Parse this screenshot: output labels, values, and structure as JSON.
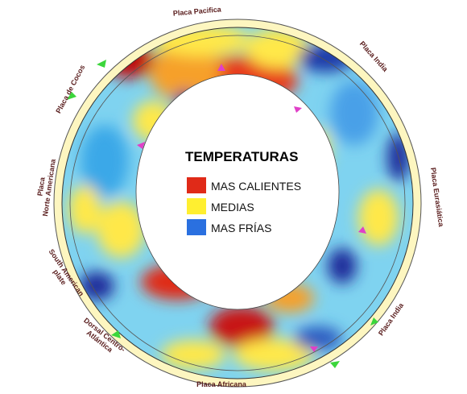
{
  "legend": {
    "title": "TEMPERATURAS",
    "items": [
      "MAS CALIENTES",
      "MEDIAS",
      "MAS FRÍAS"
    ]
  },
  "labels": [
    [
      "Placa Pacifica"
    ],
    [
      "Placa India"
    ],
    [
      "Placa Eurasiática"
    ],
    [
      "Placa India"
    ],
    [
      "Placa Africana"
    ],
    [
      "Dorsal Centro-",
      "Atlántica"
    ],
    [
      "South American",
      "plate"
    ],
    [
      "Placa",
      "Norte Americana"
    ],
    [
      "Placa de Cocos"
    ]
  ]
}
